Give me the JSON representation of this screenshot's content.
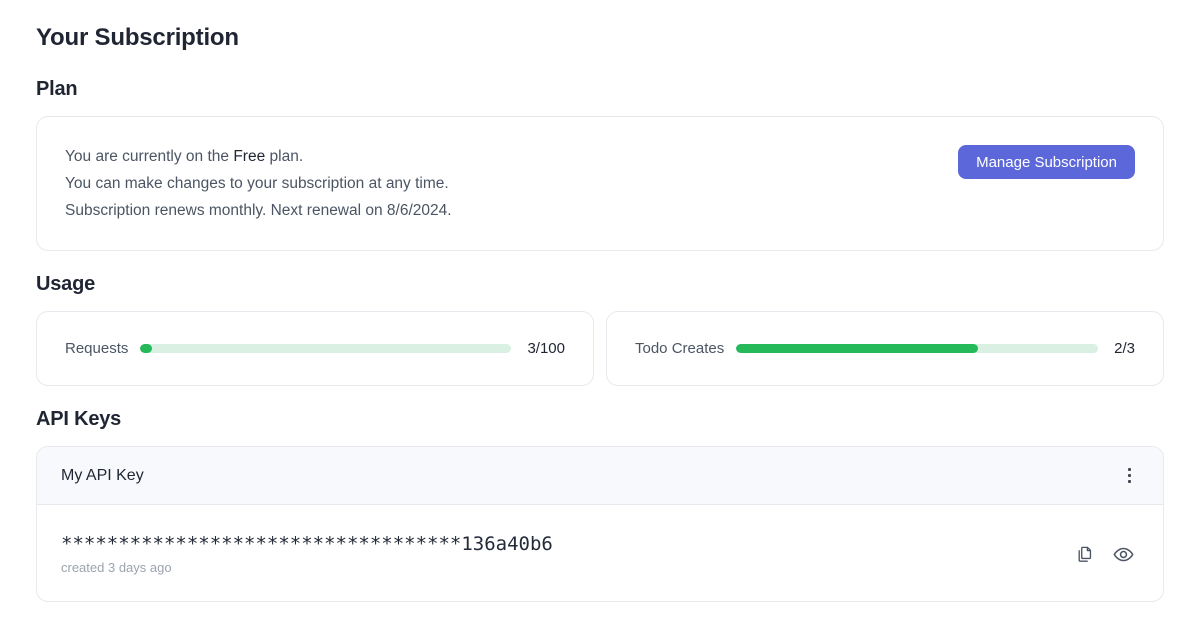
{
  "page": {
    "title": "Your Subscription"
  },
  "plan": {
    "heading": "Plan",
    "status_prefix": "You are currently on the ",
    "plan_name": "Free",
    "status_suffix": " plan.",
    "line2": "You can make changes to your subscription at any time.",
    "line3": "Subscription renews monthly. Next renewal on 8/6/2024.",
    "manage_button": "Manage Subscription"
  },
  "usage": {
    "heading": "Usage",
    "meters": [
      {
        "label": "Requests",
        "display": "3/100",
        "value": 3,
        "max": 100,
        "percent": 3
      },
      {
        "label": "Todo Creates",
        "display": "2/3",
        "value": 2,
        "max": 3,
        "percent": 66.7
      }
    ]
  },
  "api_keys": {
    "heading": "API Keys",
    "keys": [
      {
        "name": "My API Key",
        "masked_value": "***********************************136a40b6",
        "created": "created 3 days ago",
        "menu_icon": "kebab-menu-icon",
        "action_icons": [
          "copy-icon",
          "eye-icon"
        ]
      }
    ]
  },
  "colors": {
    "accent": "#5c68d9",
    "progress_fill": "#26b95a",
    "progress_track": "#d9f0e2",
    "header_bg": "#f8f9fc",
    "border": "#e7e9ee",
    "text_primary": "#1f2532",
    "text_secondary": "#4b5563",
    "text_muted": "#9ca3af"
  }
}
